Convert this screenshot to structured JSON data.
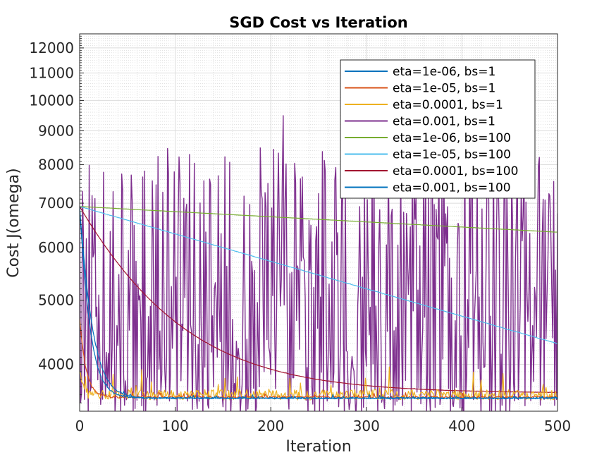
{
  "chart_data": {
    "type": "line",
    "title": "SGD Cost vs Iteration",
    "xlabel": "Iteration",
    "ylabel": "Cost J(omega)",
    "xlim": [
      0,
      500
    ],
    "ylim": [
      3400,
      12600
    ],
    "yscale": "log",
    "grid": true,
    "minor_grid": true,
    "legend_position": "top-right",
    "x_ticks": [
      0,
      100,
      200,
      300,
      400,
      500
    ],
    "y_ticks": [
      4000,
      5000,
      6000,
      7000,
      8000,
      9000,
      10000,
      11000,
      12000
    ],
    "series": [
      {
        "name": "eta=1e-06, bs=1",
        "color": "#0072BD",
        "start": 6900,
        "floor": 3560,
        "decay_iters": 9,
        "noise": 35
      },
      {
        "name": "eta=1e-05, bs=1",
        "color": "#D95319",
        "start": 4700,
        "floor": 3570,
        "decay_iters": 6,
        "noise": 50
      },
      {
        "name": "eta=0.0001, bs=1",
        "color": "#EDB120",
        "start": 3900,
        "floor": 3600,
        "decay_iters": 3,
        "noise": 260
      },
      {
        "name": "eta=0.001, bs=1",
        "color": "#7E2F8E",
        "start": 6900,
        "floor": 3520,
        "decay_iters": 1,
        "noise": 5000
      },
      {
        "name": "eta=1e-06, bs=100",
        "color": "#77AC30",
        "start": 6920,
        "end": 6330,
        "noise": 4
      },
      {
        "name": "eta=1e-05, bs=100",
        "color": "#4DBEEE",
        "start": 6920,
        "end": 4300,
        "noise": 6
      },
      {
        "name": "eta=0.0001, bs=100",
        "color": "#A2142F",
        "start": 6920,
        "floor": 3620,
        "decay_iters": 85,
        "noise": 5
      },
      {
        "name": "eta=0.001, bs=100",
        "color": "#0072BD",
        "start": 6900,
        "floor": 3555,
        "decay_iters": 11,
        "noise": 25
      }
    ]
  }
}
